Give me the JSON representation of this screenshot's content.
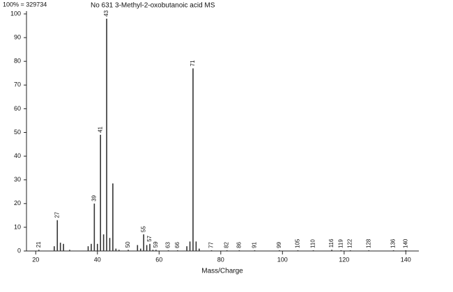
{
  "header": "100% = 329734",
  "chart_data": {
    "type": "stem",
    "title": "No 631 3-Methyl-2-oxobutanoic acid MS",
    "x_label": "Mass/Charge",
    "x": [
      21,
      26,
      27,
      28,
      29,
      31,
      37,
      38,
      39,
      40,
      41,
      42,
      43,
      44,
      45,
      46,
      47,
      50,
      53,
      54,
      55,
      56,
      57,
      58,
      59,
      63,
      66,
      69,
      70,
      71,
      72,
      73,
      77,
      82,
      86,
      91,
      99,
      105,
      110,
      116,
      119,
      122,
      128,
      136,
      140
    ],
    "values": [
      0.5,
      2,
      13,
      3.5,
      3,
      0.5,
      2,
      3,
      20,
      3,
      49,
      7,
      98,
      5.5,
      28.5,
      1,
      0.5,
      0.5,
      2.5,
      1,
      7,
      2.5,
      3,
      0.5,
      0.5,
      0.3,
      0.3,
      2,
      4,
      77,
      4,
      1,
      0.3,
      0.3,
      0.3,
      0.3,
      0.3,
      0.3,
      0.3,
      0.5,
      0.3,
      0.3,
      0.3,
      0.3,
      0.3
    ],
    "labeled": [
      true,
      false,
      true,
      false,
      false,
      false,
      false,
      false,
      true,
      false,
      true,
      false,
      true,
      false,
      false,
      false,
      false,
      true,
      false,
      false,
      true,
      false,
      true,
      false,
      true,
      true,
      true,
      false,
      false,
      true,
      false,
      false,
      true,
      true,
      true,
      true,
      true,
      true,
      true,
      true,
      true,
      true,
      true,
      true,
      true
    ],
    "color": "#333333",
    "xlim": [
      17,
      144
    ],
    "xticks": [
      20,
      40,
      60,
      80,
      100,
      120,
      140
    ],
    "ylim": [
      0,
      100
    ],
    "yticks": [
      0,
      10,
      20,
      30,
      40,
      50,
      60,
      70,
      80,
      90,
      100
    ]
  }
}
